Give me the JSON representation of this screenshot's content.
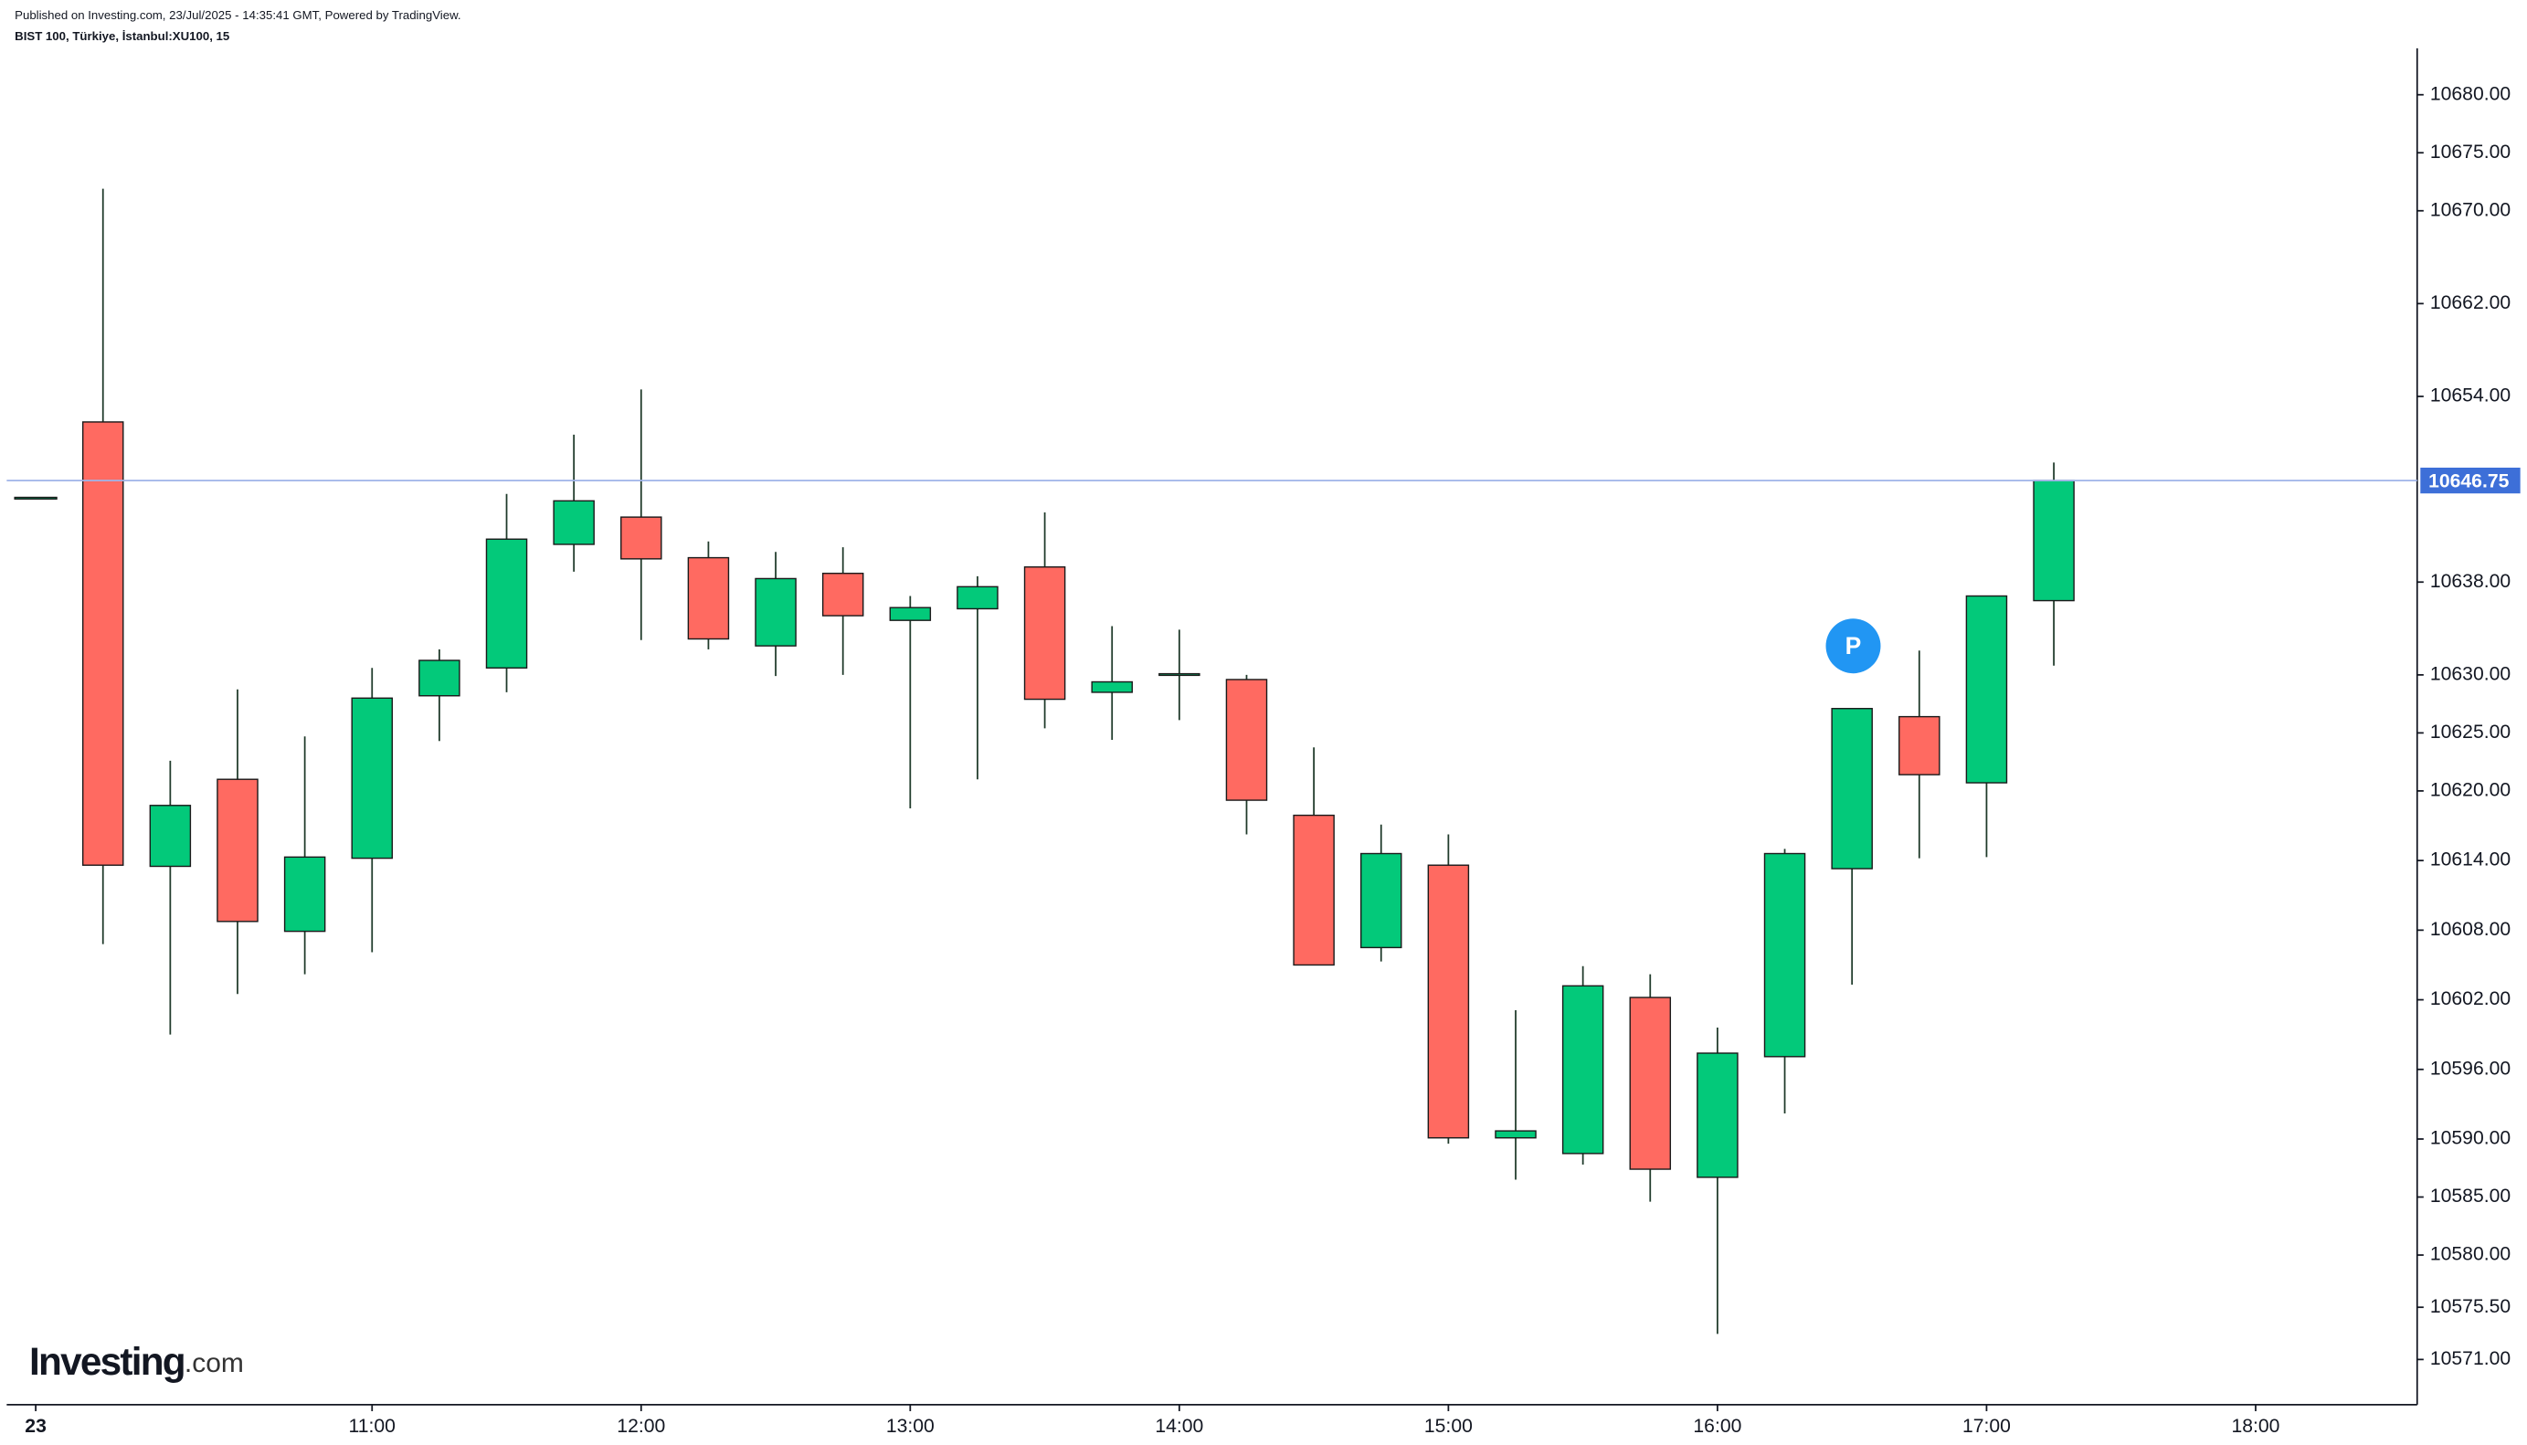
{
  "header": {
    "published": "Published on Investing.com, 23/Jul/2025 - 14:35:41 GMT, Powered by TradingView.",
    "symbol": "BIST 100, Türkiye, İstanbul:XU100, 15"
  },
  "logo": {
    "brand": "Investing",
    "suffix": ".com"
  },
  "chart_data": {
    "type": "candlestick",
    "categories": [
      "23",
      null,
      null,
      null,
      null,
      "11:00",
      null,
      null,
      null,
      "12:00",
      null,
      null,
      null,
      "13:00",
      null,
      null,
      null,
      "14:00",
      null,
      null,
      null,
      "15:00",
      null,
      null,
      null,
      "16:00",
      null,
      null,
      null,
      "17:00",
      null,
      null,
      null,
      "18:00"
    ],
    "open": [
      10645.3,
      10651.8,
      10613.5,
      10621,
      10607.9,
      10614.2,
      10628.2,
      10630.6,
      10641.25,
      10643.6,
      10640.1,
      10632.5,
      10638.75,
      10634.7,
      10635.7,
      10639.3,
      10628.5,
      10630,
      10629.6,
      10617.9,
      10606.5,
      10613.6,
      10590.1,
      10588.75,
      10602.2,
      10586.7,
      10597.1,
      10613.3,
      10626.4,
      10620.7,
      10636.4,
      null,
      null,
      null
    ],
    "high": [
      10645.3,
      10671.9,
      10622.6,
      10628.75,
      10624.7,
      10630.6,
      10632.2,
      10645.6,
      10650.7,
      10654.6,
      10641.5,
      10640.6,
      10641,
      10636.8,
      10638.5,
      10644,
      10634.2,
      10633.9,
      10630,
      10623.75,
      10617.1,
      10616.25,
      10601.1,
      10604.9,
      10604.2,
      10599.6,
      10615,
      10627.1,
      10632.1,
      10636.8,
      10648.3,
      null,
      null,
      null
    ],
    "low": [
      10645.3,
      10606.8,
      10599,
      10602.5,
      10604.2,
      10606.1,
      10624.3,
      10628.5,
      10638.9,
      10633,
      10632.2,
      10629.9,
      10630,
      10618.5,
      10621,
      10625.4,
      10624.4,
      10626.1,
      10616.25,
      10605,
      10605.3,
      10589.6,
      10586.5,
      10587.8,
      10584.6,
      10573.2,
      10592.2,
      10603.3,
      10614.2,
      10614.3,
      10630.8,
      null,
      null,
      null
    ],
    "close": [
      10645.3,
      10613.6,
      10618.75,
      10608.75,
      10614.3,
      10628,
      10631.25,
      10641.7,
      10645,
      10640,
      10633.1,
      10638.3,
      10635.1,
      10635.8,
      10637.6,
      10627.9,
      10629.4,
      10630.1,
      10619.2,
      10605,
      10614.6,
      10590.1,
      10590.7,
      10603.2,
      10587.4,
      10597.4,
      10614.6,
      10627.1,
      10621.4,
      10636.8,
      10646.75,
      null,
      null,
      null
    ],
    "up_color": "#03c97a",
    "down_color": "#ff6a61",
    "last_price": 10646.75,
    "ylim": [
      10567.1,
      10684.0
    ],
    "yticks": [
      {
        "value": 10571,
        "label": "10571.00"
      },
      {
        "value": 10575.5,
        "label": "10575.50"
      },
      {
        "value": 10580,
        "label": "10580.00"
      },
      {
        "value": 10585,
        "label": "10585.00"
      },
      {
        "value": 10590,
        "label": "10590.00"
      },
      {
        "value": 10596,
        "label": "10596.00"
      },
      {
        "value": 10602,
        "label": "10602.00"
      },
      {
        "value": 10608,
        "label": "10608.00"
      },
      {
        "value": 10614,
        "label": "10614.00"
      },
      {
        "value": 10620,
        "label": "10620.00"
      },
      {
        "value": 10625,
        "label": "10625.00"
      },
      {
        "value": 10630,
        "label": "10630.00"
      },
      {
        "value": 10638,
        "label": "10638.00"
      },
      {
        "value": 10654,
        "label": "10654.00"
      },
      {
        "value": 10662,
        "label": "10662.00"
      },
      {
        "value": 10670,
        "label": "10670.00"
      },
      {
        "value": 10675,
        "label": "10675.00"
      },
      {
        "value": 10680,
        "label": "10680.00"
      }
    ]
  }
}
